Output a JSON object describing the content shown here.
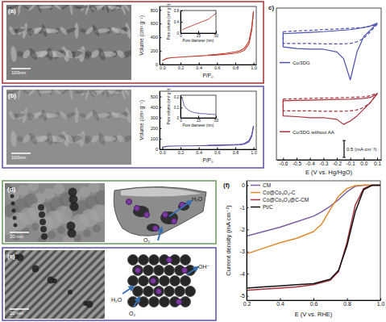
{
  "chart_data": [
    {
      "type": "line",
      "x_label": "P/P₀",
      "y_label": "Volume (cm³ g⁻¹)",
      "xlim": [
        -0.03,
        1.03
      ],
      "ylim": [
        0,
        850
      ],
      "xticks": [
        {
          "value": 0,
          "label": "0.0"
        },
        0.2,
        0.4,
        0.6,
        0.8,
        {
          "value": 1,
          "label": "1.0"
        }
      ],
      "yticks": [
        0,
        200,
        400,
        600,
        800
      ],
      "x": [
        0,
        0.05,
        0.1,
        0.2,
        0.3,
        0.4,
        0.5,
        0.6,
        0.7,
        0.8,
        0.85,
        0.9,
        0.95,
        0.98,
        1.0
      ],
      "series": [
        {
          "color": "#c0392b",
          "line_style": "solid",
          "values": [
            60,
            90,
            100,
            110,
            118,
            125,
            132,
            140,
            150,
            165,
            180,
            210,
            300,
            500,
            780
          ]
        },
        {
          "color": "#c0392b",
          "line_style": "solid",
          "values": [
            null,
            null,
            null,
            null,
            null,
            null,
            138,
            150,
            165,
            185,
            200,
            240,
            340,
            540,
            780
          ]
        }
      ]
    },
    {
      "type": "line",
      "x_label": "Pore diameter (nm)",
      "y_label": "Pore volume (cm³ g⁻¹)",
      "xlim": [
        0,
        50
      ],
      "ylim": [
        0,
        0.8
      ],
      "xticks": [
        0,
        25,
        50
      ],
      "yticks": [
        0,
        0.4,
        0.8
      ],
      "x": [
        2,
        5,
        10,
        15,
        20,
        25,
        30,
        35,
        40,
        45,
        50
      ],
      "series": [
        {
          "color": "#c0392b",
          "line_style": "solid",
          "values": [
            0.1,
            0.15,
            0.2,
            0.25,
            0.3,
            0.35,
            0.4,
            0.45,
            0.5,
            0.6,
            0.7
          ]
        }
      ]
    },
    {
      "type": "line",
      "x_label": "P/P₀",
      "y_label": "Volume (cm³ g⁻¹)",
      "xlim": [
        -0.03,
        1.03
      ],
      "ylim": [
        0,
        550
      ],
      "xticks": [
        {
          "value": 0,
          "label": "0.0"
        },
        0.2,
        0.4,
        0.6,
        0.8,
        {
          "value": 1,
          "label": "1.0"
        }
      ],
      "yticks": [
        0,
        100,
        200,
        300,
        400,
        500
      ],
      "x": [
        0,
        0.05,
        0.1,
        0.2,
        0.3,
        0.4,
        0.5,
        0.6,
        0.7,
        0.8,
        0.85,
        0.9,
        0.95,
        0.98,
        1.0
      ],
      "series": [
        {
          "color": "#5b4fa8",
          "line_style": "solid",
          "values": [
            20,
            28,
            30,
            32,
            33,
            34,
            35,
            36,
            38,
            40,
            42,
            48,
            70,
            120,
            220
          ]
        },
        {
          "color": "#5b4fa8",
          "line_style": "solid",
          "values": [
            null,
            null,
            null,
            null,
            null,
            null,
            37,
            39,
            42,
            45,
            48,
            56,
            82,
            135,
            220
          ]
        }
      ]
    },
    {
      "type": "line",
      "x_label": "Pore diameter (nm)",
      "y_label": "Pore volume (cm³ g⁻¹)",
      "xlim": [
        0,
        50
      ],
      "ylim": [
        0,
        0.22
      ],
      "xticks": [
        0,
        25,
        50
      ],
      "yticks": [
        0,
        0.1,
        0.2
      ],
      "x": [
        2,
        5,
        10,
        15,
        20,
        25,
        30,
        35,
        40,
        45,
        50
      ],
      "series": [
        {
          "color": "#5b4fa8",
          "line_style": "solid",
          "values": [
            0.2,
            0.12,
            0.08,
            0.06,
            0.05,
            0.045,
            0.04,
            0.04,
            0.035,
            0.035,
            0.03
          ]
        }
      ]
    },
    {
      "type": "line",
      "title": "c)",
      "x_label": "E (V vs. Hg/HgO)",
      "xlim": [
        -0.65,
        0.13
      ],
      "ylim": [
        -4,
        0.5
      ],
      "tick_labels": "x",
      "xticks": [
        -0.6,
        -0.5,
        -0.4,
        -0.3,
        -0.2,
        -0.1,
        {
          "value": 0,
          "label": "0.0"
        },
        0.1
      ],
      "scale_bar": {
        "value": 0.5,
        "label": "0.5 (mA cm⁻²)"
      },
      "x": [
        -0.6,
        -0.5,
        -0.4,
        -0.3,
        -0.2,
        -0.1,
        0,
        0.05,
        0.1,
        0.05,
        0,
        -0.05,
        -0.1,
        -0.15,
        -0.2,
        -0.3,
        -0.4,
        -0.5,
        -0.6,
        -0.6
      ],
      "series": [
        {
          "name": "Co/3DG",
          "color": "#4a4fb0",
          "line_style": "solid",
          "values": [
            -0.26,
            -0.24,
            -0.22,
            -0.2,
            -0.17,
            -0.14,
            -0.08,
            -0.03,
            0.05,
            -0.15,
            -0.35,
            -0.8,
            -1.63,
            -1.0,
            -0.8,
            -0.72,
            -0.72,
            -0.7,
            -0.65,
            -0.26
          ]
        },
        {
          "color": "#4a4fb0",
          "line_style": "dashed",
          "values": [
            -0.2,
            -0.18,
            -0.16,
            -0.14,
            -0.12,
            -0.1,
            -0.07,
            -0.04,
            0.02,
            -0.2,
            -0.4,
            -0.5,
            -0.55,
            -0.56,
            -0.56,
            -0.56,
            -0.55,
            -0.55,
            -0.55,
            -0.2
          ]
        },
        {
          "name": "Co/3DG without AA",
          "color": "#a8323a",
          "line_style": "solid",
          "values": [
            -2.25,
            -2.24,
            -2.23,
            -2.22,
            -2.21,
            -2.2,
            -2.18,
            -2.15,
            -2.05,
            -2.3,
            -2.5,
            -2.7,
            -2.85,
            -2.95,
            -2.8,
            -2.75,
            -2.75,
            -2.72,
            -2.7,
            -2.25
          ]
        },
        {
          "color": "#a8323a",
          "line_style": "dashed",
          "values": [
            -2.2,
            -2.19,
            -2.18,
            -2.17,
            -2.16,
            -2.15,
            -2.13,
            -2.1,
            -2.02,
            -2.3,
            -2.45,
            -2.52,
            -2.55,
            -2.56,
            -2.56,
            -2.56,
            -2.55,
            -2.55,
            -2.55,
            -2.2
          ]
        }
      ]
    },
    {
      "type": "line",
      "title": "(f)",
      "x_label": "E (V vs. RHE)",
      "y_label": "Current density (mA cm⁻²)",
      "xlim": [
        0.2,
        1.0
      ],
      "ylim": [
        -5.2,
        0.2
      ],
      "xticks": [
        0.2,
        0.4,
        0.6,
        0.8,
        {
          "value": 1,
          "label": "1.0"
        }
      ],
      "yticks": [
        -5,
        -4,
        -3,
        -2,
        -1,
        0
      ],
      "legend": "upper left",
      "x": [
        0.2,
        0.3,
        0.4,
        0.5,
        0.6,
        0.65,
        0.7,
        0.75,
        0.8,
        0.85,
        0.9,
        0.95,
        1.0
      ],
      "series": [
        {
          "name": "CM",
          "color": "#7b5ea7",
          "line_style": "solid",
          "values": [
            -2.3,
            -2.1,
            -1.9,
            -1.65,
            -1.4,
            -1.2,
            -0.95,
            -0.65,
            -0.3,
            -0.05,
            0,
            0,
            0
          ]
        },
        {
          "name": "Co@Co₃O₄-C",
          "color": "#e08a2e",
          "line_style": "solid",
          "values": [
            -3.1,
            -2.85,
            -2.6,
            -2.4,
            -2.1,
            -1.75,
            -1.1,
            -0.5,
            -0.15,
            -0.02,
            0,
            0,
            0
          ]
        },
        {
          "name": "Co@Co₃O₄@C-CM",
          "color": "#a8323a",
          "line_style": "solid",
          "values": [
            -4.75,
            -4.7,
            -4.65,
            -4.6,
            -4.5,
            -4.4,
            -4.3,
            -3.9,
            -2.6,
            -0.9,
            -0.15,
            0,
            0
          ]
        },
        {
          "name": "Pt/C",
          "color": "#111111",
          "line_style": "solid",
          "values": [
            -4.65,
            -4.6,
            -4.55,
            -4.5,
            -4.45,
            -4.35,
            -4.25,
            -3.85,
            -2.75,
            -1.2,
            -0.2,
            0,
            0
          ]
        }
      ]
    }
  ],
  "images": [
    {
      "label": "(a)",
      "scale_bar": "100nm"
    },
    {
      "label": "(b)",
      "scale_bar": "100nm"
    },
    {
      "label": "(d)",
      "scale_bar": "20 nm",
      "annotations": [
        "H₂O",
        "O₂"
      ]
    },
    {
      "label": "(e)",
      "scale_bar": "20 nm",
      "annotations": [
        "OH⁻",
        "H₂O",
        "O₂"
      ]
    }
  ]
}
